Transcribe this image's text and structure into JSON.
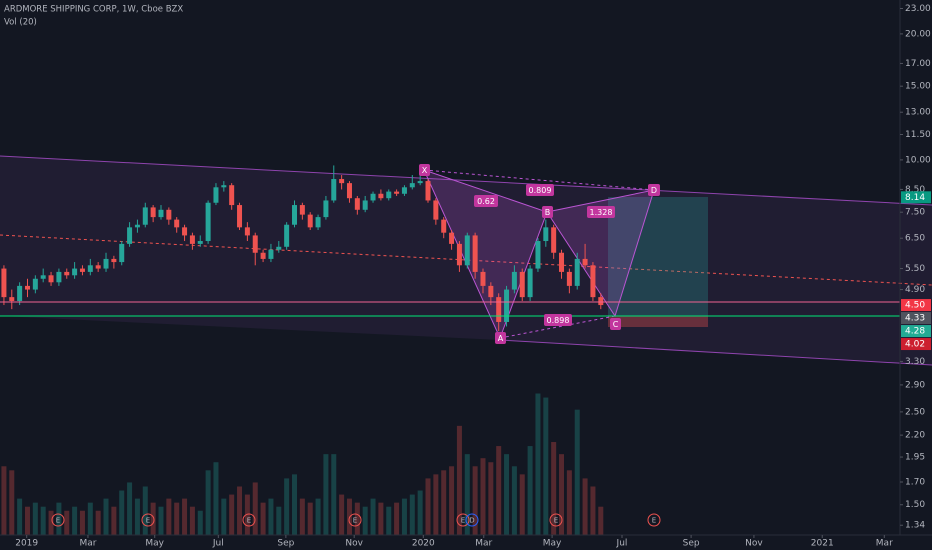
{
  "chart_data": {
    "type": "candlestick",
    "title": "ARDMORE SHIPPING CORP, 1W, Cboe BZX",
    "volume_label": "Vol (20)",
    "up_color": "#26a69a",
    "down_color": "#ef5350",
    "log_scale": true,
    "grid": false,
    "open": [
      5.5,
      4.7,
      4.6,
      5.0,
      4.9,
      5.2,
      5.3,
      5.1,
      5.4,
      5.3,
      5.5,
      5.4,
      5.6,
      5.5,
      5.8,
      5.7,
      6.3,
      6.9,
      7.0,
      7.7,
      7.3,
      7.6,
      7.2,
      6.9,
      6.6,
      6.3,
      6.4,
      7.9,
      8.6,
      8.7,
      7.8,
      6.9,
      6.6,
      6.0,
      5.8,
      6.1,
      6.2,
      7.0,
      7.8,
      7.4,
      6.9,
      7.3,
      8.0,
      9.0,
      8.8,
      8.1,
      7.6,
      8.0,
      8.3,
      8.1,
      8.4,
      8.3,
      8.6,
      8.8,
      8.9,
      8.0,
      7.2,
      6.7,
      6.3,
      5.6,
      6.6,
      5.4,
      5.0,
      4.7,
      4.1,
      4.9,
      5.4,
      4.7,
      5.5,
      6.4,
      6.9,
      6.0,
      5.4,
      5.0,
      5.8,
      5.6,
      4.7
    ],
    "high": [
      5.6,
      4.9,
      5.1,
      5.2,
      5.3,
      5.5,
      5.4,
      5.5,
      5.5,
      5.7,
      5.6,
      5.8,
      5.7,
      6.0,
      5.9,
      6.4,
      7.1,
      7.2,
      7.9,
      7.8,
      7.8,
      7.7,
      7.3,
      7.0,
      6.7,
      6.6,
      8.0,
      8.8,
      8.9,
      8.8,
      7.9,
      7.1,
      6.7,
      6.1,
      6.3,
      6.4,
      7.1,
      8.0,
      7.9,
      7.5,
      7.4,
      8.2,
      9.7,
      9.2,
      8.9,
      8.2,
      8.2,
      8.4,
      8.5,
      8.5,
      8.5,
      8.7,
      9.2,
      9.3,
      9.0,
      8.1,
      7.3,
      6.8,
      6.4,
      6.7,
      6.7,
      5.5,
      5.1,
      4.8,
      5.0,
      5.6,
      5.5,
      5.6,
      6.5,
      7.2,
      7.0,
      6.1,
      5.5,
      6.0,
      6.3,
      5.7,
      4.8
    ],
    "low": [
      4.5,
      4.4,
      4.5,
      4.7,
      4.8,
      5.1,
      5.0,
      5.0,
      5.2,
      5.2,
      5.3,
      5.3,
      5.4,
      5.4,
      5.5,
      5.6,
      6.2,
      6.7,
      6.9,
      7.1,
      7.2,
      7.0,
      6.7,
      6.4,
      6.1,
      6.2,
      6.3,
      7.8,
      8.4,
      7.6,
      6.8,
      6.4,
      5.6,
      5.7,
      5.7,
      6.0,
      6.1,
      6.9,
      7.2,
      6.8,
      6.8,
      7.2,
      7.9,
      8.5,
      7.9,
      7.4,
      7.5,
      7.9,
      8.0,
      8.0,
      8.2,
      8.2,
      8.5,
      8.7,
      7.9,
      7.0,
      6.5,
      6.1,
      5.4,
      5.5,
      5.2,
      4.8,
      4.5,
      3.9,
      4.0,
      4.8,
      4.6,
      4.6,
      5.4,
      6.2,
      5.8,
      5.2,
      4.8,
      4.9,
      5.5,
      4.6,
      4.4
    ],
    "close": [
      4.7,
      4.6,
      5.0,
      4.9,
      5.2,
      5.3,
      5.1,
      5.4,
      5.3,
      5.5,
      5.4,
      5.6,
      5.5,
      5.8,
      5.7,
      6.3,
      6.9,
      7.0,
      7.7,
      7.3,
      7.6,
      7.2,
      6.9,
      6.6,
      6.3,
      6.4,
      7.9,
      8.6,
      8.7,
      7.8,
      6.9,
      6.6,
      6.0,
      5.8,
      6.1,
      6.2,
      7.0,
      7.8,
      7.4,
      6.9,
      7.3,
      8.0,
      9.0,
      8.8,
      8.1,
      7.6,
      8.0,
      8.3,
      8.1,
      8.4,
      8.3,
      8.6,
      8.8,
      8.9,
      8.0,
      7.2,
      6.7,
      6.3,
      5.6,
      6.6,
      5.4,
      5.0,
      4.7,
      4.1,
      4.9,
      5.4,
      4.7,
      5.5,
      6.4,
      6.9,
      6.0,
      5.4,
      5.0,
      5.8,
      5.6,
      4.7,
      4.5
    ],
    "volume": [
      1.7,
      1.6,
      0.9,
      0.7,
      0.8,
      0.7,
      0.6,
      0.8,
      0.6,
      0.7,
      0.6,
      0.8,
      0.6,
      0.9,
      0.7,
      1.1,
      1.3,
      0.9,
      1.2,
      0.8,
      0.7,
      0.9,
      0.8,
      0.9,
      0.7,
      0.6,
      1.6,
      1.8,
      0.9,
      1.0,
      1.2,
      1.0,
      1.3,
      0.8,
      0.9,
      0.7,
      1.4,
      1.5,
      0.9,
      0.8,
      0.9,
      2.0,
      2.0,
      1.0,
      0.9,
      0.8,
      0.7,
      0.9,
      0.8,
      0.7,
      0.8,
      0.9,
      1.0,
      1.1,
      1.4,
      1.5,
      1.6,
      1.7,
      2.7,
      2.0,
      1.7,
      1.9,
      1.8,
      2.2,
      2.0,
      1.7,
      1.5,
      2.2,
      3.5,
      3.4,
      2.3,
      2.0,
      1.6,
      3.1,
      1.4,
      1.2,
      0.7
    ],
    "vlim": [
      0,
      4.7
    ],
    "xlim": [
      -0.5,
      114.1
    ],
    "xticks": [
      {
        "value": 2.9,
        "label": "2019"
      },
      {
        "value": 10.7,
        "label": "Mar"
      },
      {
        "value": 19.2,
        "label": "May"
      },
      {
        "value": 27.3,
        "label": "Jul"
      },
      {
        "value": 35.9,
        "label": "Sep"
      },
      {
        "value": 44.6,
        "label": "Nov"
      },
      {
        "value": 53.4,
        "label": "2020"
      },
      {
        "value": 61.1,
        "label": "Mar"
      },
      {
        "value": 69.8,
        "label": "May"
      },
      {
        "value": 78.7,
        "label": "Jul"
      },
      {
        "value": 87.5,
        "label": "Sep"
      },
      {
        "value": 95.5,
        "label": "Nov"
      },
      {
        "value": 104.2,
        "label": "2021"
      },
      {
        "value": 112.1,
        "label": "Mar"
      }
    ],
    "ylim": [
      1.27,
      24.1
    ],
    "yticks": [
      {
        "value": 23,
        "label": "23.00"
      },
      {
        "value": 20,
        "label": "20.00"
      },
      {
        "value": 17,
        "label": "17.00"
      },
      {
        "value": 15,
        "label": "15.00"
      },
      {
        "value": 13,
        "label": "13.00"
      },
      {
        "value": 11.5,
        "label": "11.50"
      },
      {
        "value": 10,
        "label": "10.00"
      },
      {
        "value": 8.5,
        "label": "8.50"
      },
      {
        "value": 7.5,
        "label": "7.50"
      },
      {
        "value": 6.5,
        "label": "6.50"
      },
      {
        "value": 5.5,
        "label": "5.50"
      },
      {
        "value": 4.9,
        "label": "4.90"
      },
      {
        "value": 3.3,
        "label": "3.30"
      },
      {
        "value": 2.9,
        "label": "2.90"
      },
      {
        "value": 2.5,
        "label": "2.50"
      },
      {
        "value": 2.2,
        "label": "2.20"
      },
      {
        "value": 1.95,
        "label": "1.95"
      },
      {
        "value": 1.7,
        "label": "1.70"
      },
      {
        "value": 1.5,
        "label": "1.50"
      },
      {
        "value": 1.34,
        "label": "1.34"
      }
    ],
    "price_labels": [
      {
        "value": 8.14,
        "label": "8.14",
        "color": "#089981"
      },
      {
        "value": 4.5,
        "label": "4.50",
        "color": "#f23645"
      },
      {
        "value": 4.33,
        "label": "4.33",
        "color": "#50535e"
      },
      {
        "value": 4.28,
        "label": "4.28",
        "color": "#22ab94"
      },
      {
        "value": 4.02,
        "label": "4.02",
        "color": "#cc1f2f"
      }
    ],
    "pattern_points": [
      "X",
      "A",
      "B",
      "C",
      "D"
    ],
    "pattern_ratios": [
      "0.62",
      "0.809",
      "1.328",
      "0.898"
    ],
    "events": [
      "E",
      "E",
      "E",
      "E",
      "E",
      "D",
      "E",
      "E"
    ]
  }
}
